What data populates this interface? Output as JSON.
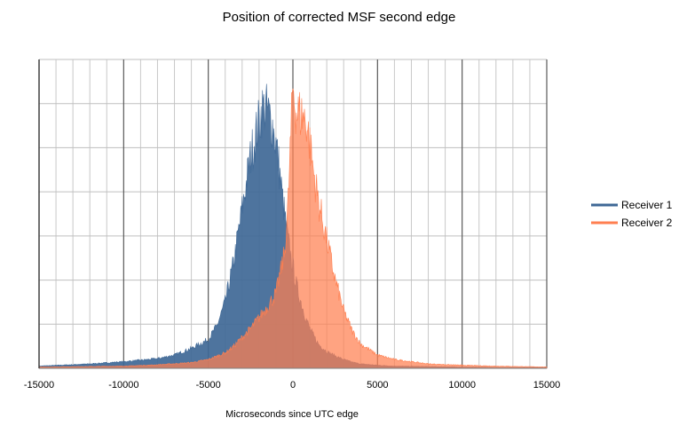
{
  "chart_data": {
    "type": "area",
    "title": "Position of corrected MSF second edge",
    "xlabel": "Microseconds since UTC edge",
    "ylabel": "",
    "xlim": [
      -15000,
      15000
    ],
    "xticks": [
      -15000,
      -10000,
      -5000,
      0,
      5000,
      10000,
      15000
    ],
    "xtick_labels": [
      "-15000",
      "-10000",
      "-5000",
      "0",
      "5000",
      "10000",
      "15000"
    ],
    "ylim": [
      0,
      7
    ],
    "y_major_gridlines": 7,
    "y_tick_labels_shown": false,
    "grid": true,
    "legend_position": "right",
    "series": [
      {
        "name": "Receiver 1",
        "color": "#3f6896",
        "x": [
          -15000,
          -12000,
          -10000,
          -8000,
          -7000,
          -6000,
          -5000,
          -4500,
          -4000,
          -3500,
          -3000,
          -2500,
          -2000,
          -1800,
          -1500,
          -1200,
          -1000,
          -800,
          -600,
          -400,
          -200,
          0,
          200,
          400,
          600,
          800,
          1000,
          1200,
          1500,
          2000,
          2500,
          3000,
          3500,
          4000,
          5000,
          6000,
          8000,
          10000,
          12000,
          15000
        ],
        "values": [
          0.05,
          0.1,
          0.15,
          0.22,
          0.3,
          0.45,
          0.65,
          0.95,
          1.5,
          2.4,
          3.6,
          4.8,
          5.6,
          5.9,
          5.85,
          5.5,
          5.1,
          4.5,
          3.8,
          3.2,
          2.7,
          2.3,
          1.9,
          1.6,
          1.35,
          1.1,
          0.9,
          0.75,
          0.55,
          0.38,
          0.28,
          0.2,
          0.14,
          0.1,
          0.07,
          0.05,
          0.04,
          0.03,
          0.02,
          0.02
        ]
      },
      {
        "name": "Receiver 2",
        "color": "#ff7f50",
        "x": [
          -15000,
          -12000,
          -10000,
          -8000,
          -6000,
          -5000,
          -4000,
          -3500,
          -3000,
          -2500,
          -2000,
          -1500,
          -1000,
          -500,
          -300,
          0,
          200,
          500,
          800,
          1000,
          1200,
          1500,
          2000,
          2500,
          3000,
          3500,
          4000,
          5000,
          6000,
          7000,
          8000,
          10000,
          12000,
          15000
        ],
        "values": [
          0.03,
          0.04,
          0.05,
          0.08,
          0.13,
          0.2,
          0.35,
          0.5,
          0.7,
          0.9,
          1.15,
          1.4,
          1.7,
          2.6,
          3.6,
          6.4,
          5.8,
          5.75,
          5.6,
          5.1,
          4.5,
          3.8,
          2.9,
          2.0,
          1.3,
          0.85,
          0.55,
          0.3,
          0.2,
          0.15,
          0.1,
          0.07,
          0.05,
          0.03
        ]
      }
    ]
  }
}
